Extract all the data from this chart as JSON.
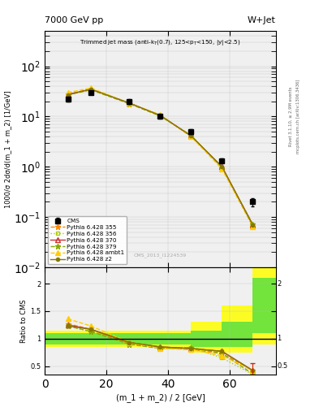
{
  "title_top": "7000 GeV pp",
  "title_right": "W+Jet",
  "watermark": "CMS_2013_I1224539",
  "ylabel_main": "1000/σ 2dσ/d(m_1 + m_2) [1/GeV]",
  "ylabel_ratio": "Ratio to CMS",
  "xlabel": "(m_1 + m_2) / 2 [GeV]",
  "right_label1": "Rivet 3.1.10, ≥ 2.9M events",
  "right_label2": "mcplots.cern.ch [arXiv:1306.3436]",
  "x_data": [
    7.5,
    15.0,
    27.5,
    37.5,
    47.5,
    57.5,
    67.5
  ],
  "cms_y": [
    22.0,
    30.0,
    20.0,
    10.0,
    5.0,
    1.3,
    0.2
  ],
  "cms_yerr": [
    2.5,
    2.5,
    1.8,
    1.0,
    0.5,
    0.15,
    0.04
  ],
  "p355_y": [
    28.0,
    35.0,
    18.0,
    10.5,
    4.0,
    0.95,
    0.065
  ],
  "p356_y": [
    27.0,
    34.0,
    18.5,
    10.2,
    4.2,
    0.95,
    0.07
  ],
  "p370_y": [
    27.5,
    35.0,
    18.5,
    10.5,
    4.1,
    1.0,
    0.07
  ],
  "p379_y": [
    27.0,
    34.0,
    18.0,
    10.2,
    4.2,
    0.95,
    0.072
  ],
  "pambt1_y": [
    30.0,
    37.0,
    18.5,
    10.8,
    4.0,
    0.9,
    0.065
  ],
  "pz2_y": [
    27.0,
    35.0,
    18.5,
    10.5,
    4.1,
    1.0,
    0.068
  ],
  "r355": [
    1.27,
    1.17,
    0.9,
    0.84,
    0.8,
    0.73,
    0.42
  ],
  "r356": [
    1.23,
    1.13,
    0.92,
    0.82,
    0.84,
    0.65,
    0.35
  ],
  "r370": [
    1.25,
    1.17,
    0.93,
    0.85,
    0.82,
    0.77,
    0.42
  ],
  "r379": [
    1.23,
    1.13,
    0.9,
    0.82,
    0.84,
    0.73,
    0.36
  ],
  "rambt1": [
    1.36,
    1.23,
    0.93,
    0.82,
    0.8,
    0.69,
    0.42
  ],
  "rz2": [
    1.23,
    1.17,
    0.93,
    0.85,
    0.82,
    0.77,
    0.42
  ],
  "band_x": [
    0,
    15,
    27.5,
    37.5,
    47.5,
    57.5,
    67.5,
    75
  ],
  "inner_lo": [
    0.9,
    0.9,
    0.9,
    0.9,
    0.85,
    0.85,
    1.1,
    1.1
  ],
  "inner_hi": [
    1.1,
    1.1,
    1.1,
    1.1,
    1.15,
    1.3,
    2.1,
    2.1
  ],
  "outer_lo": [
    0.85,
    0.85,
    0.85,
    0.85,
    0.75,
    0.75,
    0.9,
    0.9
  ],
  "outer_hi": [
    1.15,
    1.15,
    1.15,
    1.15,
    1.3,
    1.6,
    2.3,
    2.3
  ],
  "color_355": "#ff8800",
  "color_356": "#aacc00",
  "color_370": "#cc3333",
  "color_379": "#88aa00",
  "color_ambt1": "#ffcc00",
  "color_z2": "#887700",
  "xlim": [
    0,
    75
  ],
  "ylim_main": [
    0.01,
    500
  ],
  "ylim_ratio": [
    0.35,
    2.3
  ],
  "bg_color": "#f0f0f0"
}
